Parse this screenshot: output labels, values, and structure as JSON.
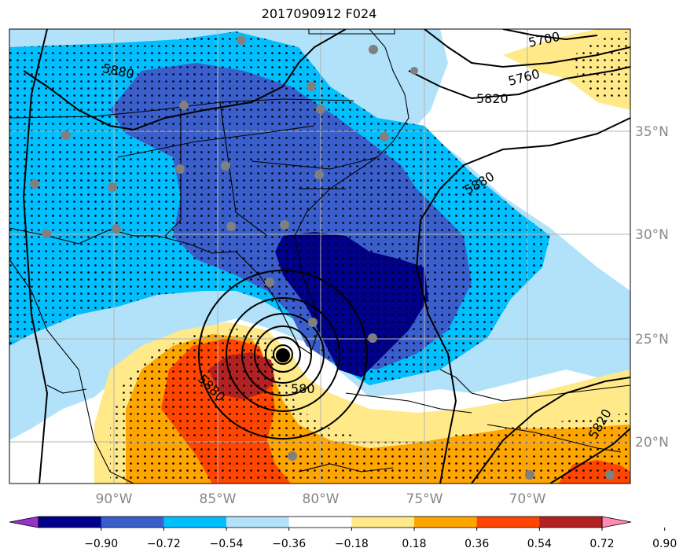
{
  "title": "2017090912 F024",
  "colors": {
    "levels": [
      "#9932cc",
      "#00008b",
      "#3a5fcd",
      "#00bfff",
      "#b2e2fa",
      "#ffffff",
      "#ffe989",
      "#ffa500",
      "#ff4500",
      "#b22222",
      "#ff88b5"
    ],
    "stipple": "#000000",
    "station": "#808080",
    "contour": "#000000",
    "grid": "#b4b4b4"
  },
  "lon_labels": [
    "90°W",
    "85°W",
    "80°W",
    "75°W",
    "70°W"
  ],
  "lat_labels": [
    "35°N",
    "30°N",
    "25°N",
    "20°N"
  ],
  "colorbar": {
    "ticks": [
      "−0.90",
      "−0.72",
      "−0.54",
      "−0.36",
      "−0.18",
      "0.18",
      "0.36",
      "0.54",
      "0.72",
      "0.90"
    ]
  },
  "height_labels": [
    {
      "text": "5700"
    },
    {
      "text": "5760"
    },
    {
      "text": "5820"
    },
    {
      "text": "5880"
    },
    {
      "text": "5880"
    },
    {
      "text": "5820"
    },
    {
      "text": "5880"
    },
    {
      "text": "580"
    }
  ]
}
